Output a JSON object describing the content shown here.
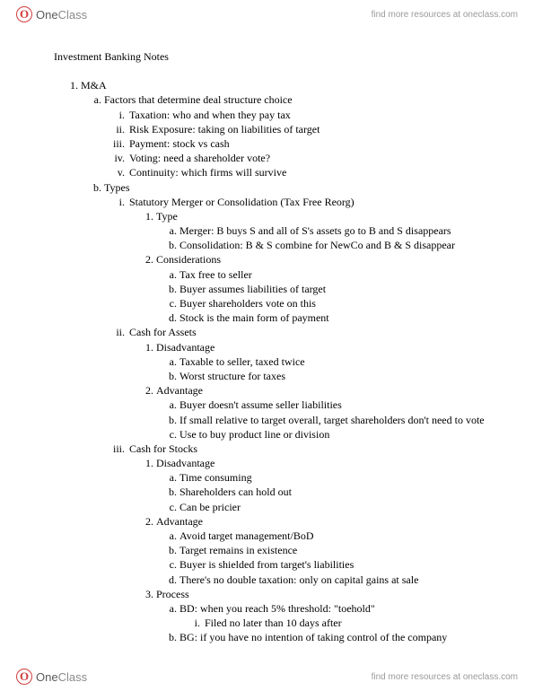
{
  "brand": {
    "badge_letter": "O",
    "name_one": "One",
    "name_class": "Class",
    "resources_text": "find more resources at oneclass.com"
  },
  "doc": {
    "title": "Investment Banking Notes",
    "outline": {
      "n1": "M&A",
      "a": {
        "label": "Factors that determine deal structure choice",
        "i": "Taxation: who and when they pay tax",
        "ii": "Risk Exposure: taking on liabilities of target",
        "iii": "Payment: stock vs cash",
        "iv": "Voting: need a shareholder vote?",
        "v": "Continuity: which firms will survive"
      },
      "b": {
        "label": "Types",
        "i": {
          "label": "Statutory Merger or Consolidation (Tax Free Reorg)",
          "s1": {
            "label": "Type",
            "a": "Merger: B buys S and all of S's assets go to B and S disappears",
            "b": "Consolidation: B & S combine for NewCo and B & S disappear"
          },
          "s2": {
            "label": "Considerations",
            "a": "Tax free to seller",
            "b": "Buyer assumes liabilities of target",
            "c": "Buyer shareholders vote on this",
            "d": "Stock is the main form of payment"
          }
        },
        "ii": {
          "label": "Cash for Assets",
          "s1": {
            "label": "Disadvantage",
            "a": "Taxable to seller, taxed twice",
            "b": "Worst structure for taxes"
          },
          "s2": {
            "label": "Advantage",
            "a": "Buyer doesn't assume seller liabilities",
            "b": "If small relative to target overall, target shareholders don't need to vote",
            "c": "Use to buy product line or division"
          }
        },
        "iii": {
          "label": "Cash for Stocks",
          "s1": {
            "label": "Disadvantage",
            "a": "Time consuming",
            "b": "Shareholders can hold out",
            "c": "Can be pricier"
          },
          "s2": {
            "label": "Advantage",
            "a": "Avoid target management/BoD",
            "b": "Target remains in existence",
            "c": "Buyer is shielded from target's liabilities",
            "d": "There's no double taxation: only on capital gains at sale"
          },
          "s3": {
            "label": "Process",
            "a": {
              "label": "BD: when you reach 5% threshold: \"toehold\"",
              "i": "Filed no later than 10 days after"
            },
            "b": "BG: if you have no intention of taking control of the company"
          }
        }
      }
    }
  }
}
